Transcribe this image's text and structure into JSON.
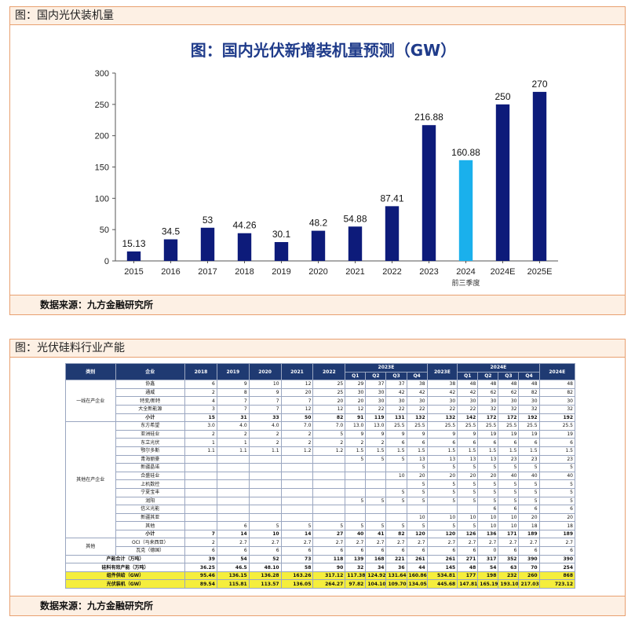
{
  "panel1": {
    "header": "图：国内光伏装机量",
    "footer": "数据来源：九方金融研究所"
  },
  "panel2": {
    "header": "图：光伏硅料行业产能",
    "footer": "数据来源：九方金融研究所"
  },
  "chart_data": {
    "type": "bar",
    "title": "图：国内光伏新增装机量预测（GW）",
    "categories": [
      "2015",
      "2016",
      "2017",
      "2018",
      "2019",
      "2020",
      "2021",
      "2022",
      "2023",
      "2024",
      "2024E",
      "2025E"
    ],
    "category_note": {
      "index": 9,
      "text": "前三季度"
    },
    "values": [
      15.13,
      34.5,
      53,
      44.26,
      30.1,
      48.2,
      54.88,
      87.41,
      216.88,
      160.88,
      250,
      270
    ],
    "value_labels": [
      "15.13",
      "34.5",
      "53",
      "44.26",
      "30.1",
      "48.2",
      "54.88",
      "87.41",
      "216.88",
      "160.88",
      "250",
      "270"
    ],
    "highlight_index": 9,
    "ylim": [
      0,
      300
    ],
    "yticks": [
      0,
      50,
      100,
      150,
      200,
      250,
      300
    ],
    "colors": {
      "bar": "#0d1b7a",
      "highlight": "#1ab0ec"
    },
    "grid": false
  },
  "table": {
    "headers": {
      "category": "类别",
      "company": "企业",
      "years": [
        "2018",
        "2019",
        "2020",
        "2021",
        "2022"
      ],
      "y2023e": "2023E",
      "quarters": [
        "Q1",
        "Q2",
        "Q3",
        "Q4"
      ],
      "y2023e_total": "2023E",
      "y2024e": "2024E",
      "y2024e_total": "2024E"
    },
    "groups": [
      {
        "name": "一线在产企业",
        "rows": [
          {
            "company": "协鑫",
            "v": [
              "6",
              "9",
              "10",
              "12",
              "25",
              "29",
              "37",
              "37",
              "38",
              "38",
              "48",
              "48",
              "48",
              "48",
              "48"
            ]
          },
          {
            "company": "通威",
            "v": [
              "2",
              "8",
              "9",
              "20",
              "25",
              "30",
              "30",
              "42",
              "42",
              "42",
              "42",
              "62",
              "62",
              "82",
              "82"
            ]
          },
          {
            "company": "特变/新特",
            "v": [
              "4",
              "7",
              "7",
              "7",
              "20",
              "20",
              "30",
              "30",
              "30",
              "30",
              "30",
              "30",
              "30",
              "30",
              "30"
            ]
          },
          {
            "company": "大全新能源",
            "v": [
              "3",
              "7",
              "7",
              "12",
              "12",
              "12",
              "22",
              "22",
              "22",
              "22",
              "22",
              "32",
              "32",
              "32",
              "32"
            ]
          }
        ],
        "subtotal": {
          "company": "小计",
          "v": [
            "15",
            "31",
            "33",
            "50",
            "82",
            "91",
            "119",
            "131",
            "132",
            "132",
            "142",
            "172",
            "172",
            "192",
            "192"
          ]
        }
      },
      {
        "name": "其他在产企业",
        "rows": [
          {
            "company": "东方希望",
            "v": [
              "3.0",
              "4.0",
              "4.0",
              "7.0",
              "7.0",
              "13.0",
              "13.0",
              "25.5",
              "25.5",
              "25.5",
              "25.5",
              "25.5",
              "25.5",
              "25.5",
              "25.5"
            ]
          },
          {
            "company": "亚洲硅业",
            "v": [
              "2",
              "2",
              "2",
              "2",
              "5",
              "9",
              "9",
              "9",
              "9",
              "9",
              "9",
              "19",
              "19",
              "19",
              "19"
            ]
          },
          {
            "company": "东立光伏",
            "v": [
              "1",
              "1",
              "2",
              "2",
              "2",
              "2",
              "2",
              "6",
              "6",
              "6",
              "6",
              "6",
              "6",
              "6",
              "6"
            ]
          },
          {
            "company": "鄂尔多斯",
            "v": [
              "1.1",
              "1.1",
              "1.1",
              "1.2",
              "1.2",
              "1.5",
              "1.5",
              "1.5",
              "1.5",
              "1.5",
              "1.5",
              "1.5",
              "1.5",
              "1.5",
              "1.5"
            ]
          },
          {
            "company": "青海丽豪",
            "v": [
              "",
              "",
              "",
              "",
              "",
              "5",
              "5",
              "5",
              "13",
              "13",
              "13",
              "13",
              "23",
              "23",
              "23"
            ]
          },
          {
            "company": "新疆晶诺",
            "v": [
              "",
              "",
              "",
              "",
              "",
              "",
              "",
              "",
              "5",
              "5",
              "5",
              "5",
              "5",
              "5",
              "5"
            ]
          },
          {
            "company": "合盛硅业",
            "v": [
              "",
              "",
              "",
              "",
              "",
              "",
              "",
              "10",
              "20",
              "20",
              "20",
              "20",
              "40",
              "40",
              "40"
            ]
          },
          {
            "company": "上机数控",
            "v": [
              "",
              "",
              "",
              "",
              "",
              "",
              "",
              "",
              "5",
              "5",
              "5",
              "5",
              "5",
              "5",
              "5"
            ]
          },
          {
            "company": "宁夏宝丰",
            "v": [
              "",
              "",
              "",
              "",
              "",
              "",
              "",
              "5",
              "5",
              "5",
              "5",
              "5",
              "5",
              "5",
              "5"
            ]
          },
          {
            "company": "润阳",
            "v": [
              "",
              "",
              "",
              "",
              "",
              "5",
              "5",
              "5",
              "5",
              "5",
              "5",
              "5",
              "5",
              "5",
              "5"
            ]
          },
          {
            "company": "信义光能",
            "v": [
              "",
              "",
              "",
              "",
              "",
              "",
              "",
              "",
              "",
              "",
              "",
              "6",
              "6",
              "6",
              "6"
            ]
          },
          {
            "company": "新疆其亚",
            "v": [
              "",
              "",
              "",
              "",
              "",
              "",
              "",
              "",
              "10",
              "10",
              "10",
              "10",
              "10",
              "20",
              "20"
            ]
          },
          {
            "company": "其他",
            "v": [
              "",
              "6",
              "5",
              "5",
              "5",
              "5",
              "5",
              "5",
              "5",
              "5",
              "5",
              "10",
              "10",
              "18",
              "18"
            ]
          }
        ],
        "subtotal": {
          "company": "小计",
          "v": [
            "7",
            "14",
            "10",
            "14",
            "27",
            "40",
            "41",
            "82",
            "120",
            "120",
            "126",
            "136",
            "171",
            "189",
            "189"
          ]
        }
      },
      {
        "name": "其他",
        "rows": [
          {
            "company": "OCI（马来西亚）",
            "v": [
              "2",
              "2.7",
              "2.7",
              "2.7",
              "2.7",
              "2.7",
              "2.7",
              "2.7",
              "2.7",
              "2.7",
              "2.7",
              "2.7",
              "2.7",
              "2.7",
              "2.7"
            ]
          },
          {
            "company": "瓦克（德国）",
            "v": [
              "6",
              "6",
              "6",
              "6",
              "6",
              "6",
              "6",
              "6",
              "6",
              "6",
              "6",
              "0",
              "6",
              "6",
              "6"
            ]
          }
        ]
      }
    ],
    "summary_rows": [
      {
        "label": "产能合计（万吨）",
        "style": "bold",
        "v": [
          "39",
          "54",
          "52",
          "73",
          "118",
          "139",
          "168",
          "221",
          "261",
          "261",
          "271",
          "317",
          "352",
          "390",
          "390"
        ]
      },
      {
        "label": "硅料有效产能（万吨）",
        "style": "bold",
        "v": [
          "36.25",
          "46.5",
          "48.10",
          "58",
          "90",
          "32",
          "34",
          "36",
          "44",
          "145",
          "48",
          "54",
          "63",
          "70",
          "254"
        ]
      },
      {
        "label": "组件供给（GW）",
        "style": "hl",
        "v": [
          "95.46",
          "136.15",
          "136.28",
          "163.26",
          "317.12",
          "117.38",
          "124.92",
          "131.64",
          "160.86",
          "534.81",
          "177",
          "198",
          "232",
          "260",
          "868"
        ]
      },
      {
        "label": "光伏装机（GW）",
        "style": "hl",
        "v": [
          "89.54",
          "115.81",
          "113.57",
          "136.05",
          "264.27",
          "97.82",
          "104.10",
          "109.70",
          "134.05",
          "445.68",
          "147.81",
          "165.19",
          "193.10",
          "217.03",
          "723.12"
        ]
      }
    ]
  }
}
